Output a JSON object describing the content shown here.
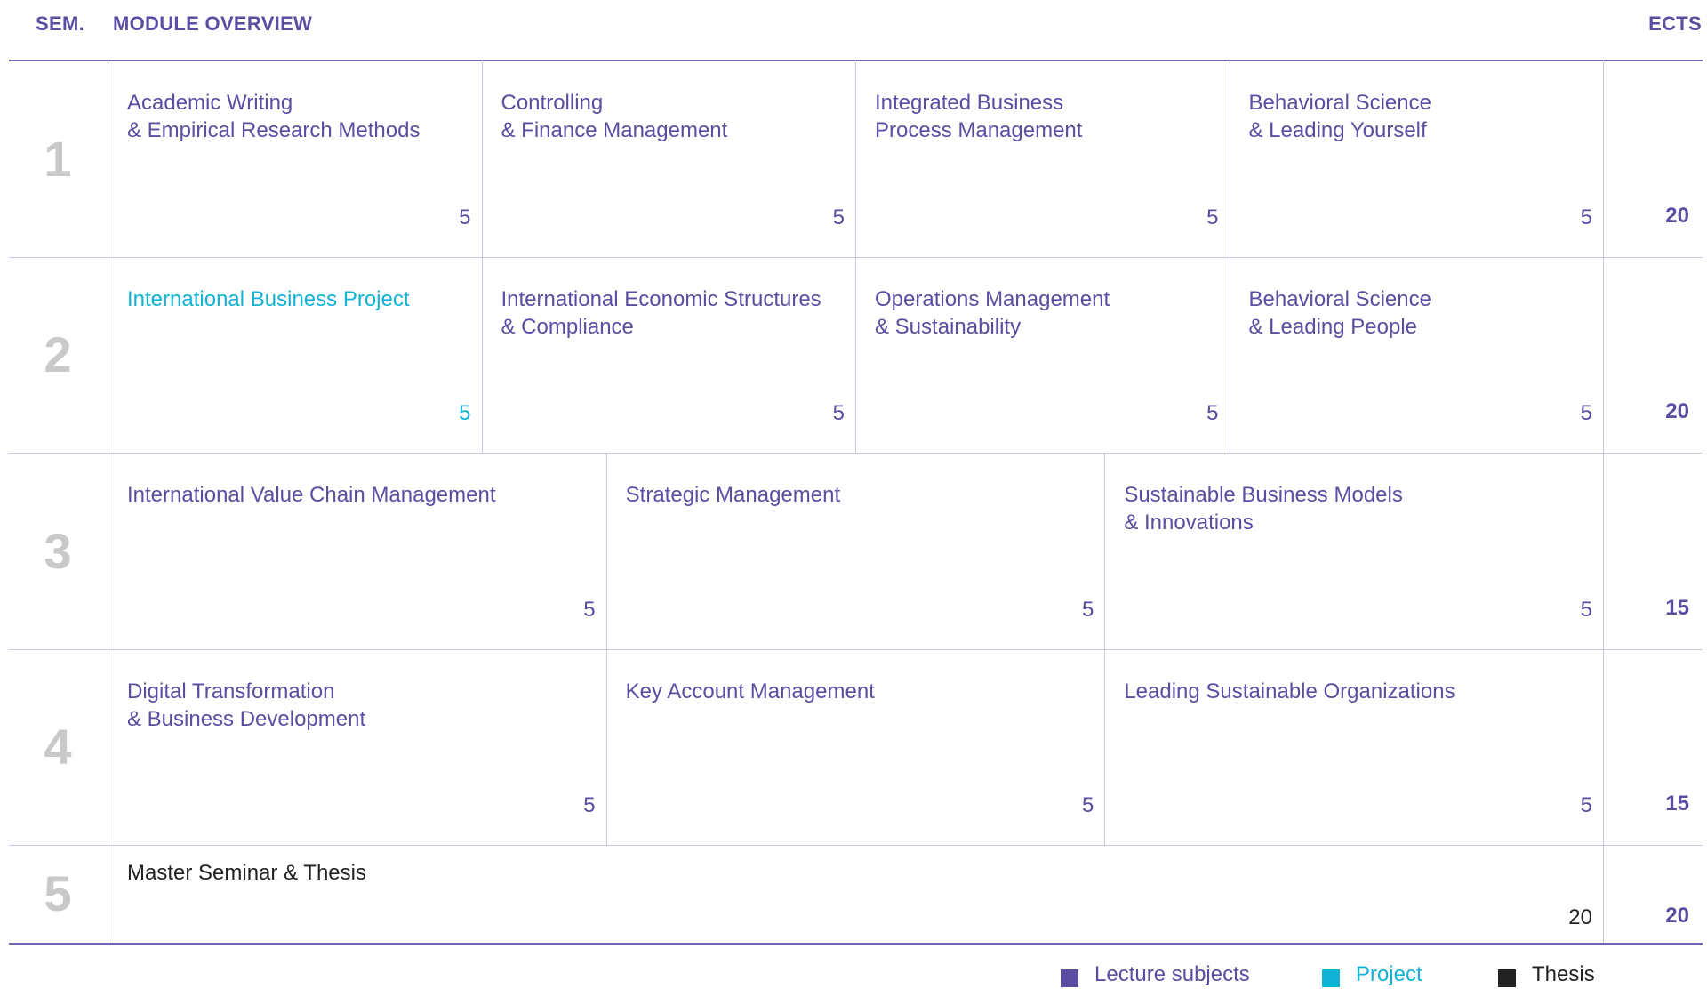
{
  "header": {
    "sem": "SEM.",
    "overview": "MODULE OVERVIEW",
    "ects": "ECTS"
  },
  "colors": {
    "lecture": "#5b4ea2",
    "project": "#12b2d6",
    "thesis": "#222222",
    "semester_number": "#c9c9c9"
  },
  "semesters": [
    {
      "number": "1",
      "total": "20",
      "modules": [
        {
          "title": "Academic Writing\n& Empirical Research Methods",
          "ects": "5",
          "type": "lecture"
        },
        {
          "title": "Controlling\n& Finance Management",
          "ects": "5",
          "type": "lecture"
        },
        {
          "title": "Integrated Business\nProcess Management",
          "ects": "5",
          "type": "lecture"
        },
        {
          "title": "Behavioral Science\n& Leading Yourself",
          "ects": "5",
          "type": "lecture"
        }
      ]
    },
    {
      "number": "2",
      "total": "20",
      "modules": [
        {
          "title": "International Business Project",
          "ects": "5",
          "type": "project"
        },
        {
          "title": "International Economic Structures\n& Compliance",
          "ects": "5",
          "type": "lecture"
        },
        {
          "title": "Operations Management\n& Sustainability",
          "ects": "5",
          "type": "lecture"
        },
        {
          "title": "Behavioral Science\n& Leading People",
          "ects": "5",
          "type": "lecture"
        }
      ]
    },
    {
      "number": "3",
      "total": "15",
      "modules": [
        {
          "title": "International Value Chain Management",
          "ects": "5",
          "type": "lecture"
        },
        {
          "title": "Strategic Management",
          "ects": "5",
          "type": "lecture"
        },
        {
          "title": "Sustainable Business Models\n& Innovations",
          "ects": "5",
          "type": "lecture"
        }
      ]
    },
    {
      "number": "4",
      "total": "15",
      "modules": [
        {
          "title": "Digital Transformation\n& Business Development",
          "ects": "5",
          "type": "lecture"
        },
        {
          "title": "Key Account Management",
          "ects": "5",
          "type": "lecture"
        },
        {
          "title": "Leading Sustainable Organizations",
          "ects": "5",
          "type": "lecture"
        }
      ]
    },
    {
      "number": "5",
      "total": "20",
      "modules": [
        {
          "title": "Master Seminar & Thesis",
          "ects": "20",
          "type": "thesis"
        }
      ]
    }
  ],
  "legend": [
    {
      "label": "Lecture subjects",
      "type": "lecture"
    },
    {
      "label": "Project",
      "type": "project"
    },
    {
      "label": "Thesis",
      "type": "thesis"
    }
  ]
}
